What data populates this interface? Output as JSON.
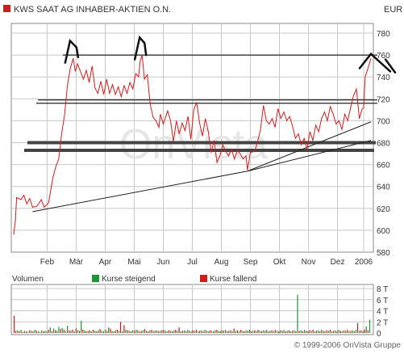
{
  "header": {
    "title": "KWS SAAT AG INHABER-AKTIEN O.N.",
    "currency": "EUR"
  },
  "watermark": "OnVista",
  "colors": {
    "price_line": "#d21c1c",
    "grid": "#c8c8c8",
    "volume_up": "#1e9632",
    "volume_down": "#d21c1c",
    "trendline": "#222222",
    "support_band": "#444444",
    "annotation": "#111111"
  },
  "price_panel": {
    "y_ticks": [
      "780",
      "760",
      "740",
      "720",
      "700",
      "680",
      "660",
      "640",
      "620",
      "600",
      "580"
    ],
    "x_ticks": [
      "Feb",
      "Mär",
      "Apr",
      "Mai",
      "Jun",
      "Jul",
      "Aug",
      "Sep",
      "Okt",
      "Nov",
      "Dez",
      "2006"
    ]
  },
  "volume_panel": {
    "title": "Volumen",
    "legend_up": "Kurse steigend",
    "legend_down": "Kurse fallend",
    "y_ticks": [
      "8 T",
      "6 T",
      "4 T",
      "2 T",
      "0"
    ]
  },
  "footer": {
    "copyright": "© 1999-2006 OnVista Gruppe"
  },
  "chart_data": {
    "type": "line",
    "title": "KWS SAAT AG INHABER-AKTIEN O.N.",
    "ylabel": "EUR",
    "ylim": [
      580,
      780
    ],
    "x_unit": "months since start of January 2005",
    "xlim": [
      0,
      12.3
    ],
    "grid": true,
    "series": [
      {
        "name": "KWS SAAT AG INHABER-AKTIEN O.N.",
        "points": [
          [
            0.0,
            596
          ],
          [
            0.06,
            610
          ],
          [
            0.1,
            630
          ],
          [
            0.25,
            628
          ],
          [
            0.35,
            632
          ],
          [
            0.45,
            624
          ],
          [
            0.55,
            629
          ],
          [
            0.65,
            621
          ],
          [
            0.8,
            622
          ],
          [
            0.95,
            628
          ],
          [
            1.05,
            621
          ],
          [
            1.2,
            625
          ],
          [
            1.35,
            648
          ],
          [
            1.45,
            658
          ],
          [
            1.55,
            665
          ],
          [
            1.65,
            688
          ],
          [
            1.75,
            705
          ],
          [
            1.85,
            732
          ],
          [
            1.95,
            748
          ],
          [
            2.05,
            757
          ],
          [
            2.12,
            745
          ],
          [
            2.2,
            752
          ],
          [
            2.3,
            745
          ],
          [
            2.4,
            738
          ],
          [
            2.5,
            746
          ],
          [
            2.6,
            735
          ],
          [
            2.7,
            750
          ],
          [
            2.8,
            730
          ],
          [
            2.9,
            725
          ],
          [
            3.0,
            736
          ],
          [
            3.1,
            724
          ],
          [
            3.2,
            738
          ],
          [
            3.3,
            725
          ],
          [
            3.4,
            733
          ],
          [
            3.5,
            724
          ],
          [
            3.6,
            731
          ],
          [
            3.7,
            722
          ],
          [
            3.8,
            732
          ],
          [
            3.9,
            725
          ],
          [
            4.0,
            735
          ],
          [
            4.1,
            729
          ],
          [
            4.2,
            743
          ],
          [
            4.3,
            740
          ],
          [
            4.35,
            754
          ],
          [
            4.42,
            760
          ],
          [
            4.5,
            738
          ],
          [
            4.6,
            742
          ],
          [
            4.7,
            715
          ],
          [
            4.8,
            703
          ],
          [
            4.9,
            700
          ],
          [
            5.0,
            694
          ],
          [
            5.05,
            706
          ],
          [
            5.15,
            697
          ],
          [
            5.3,
            709
          ],
          [
            5.4,
            700
          ],
          [
            5.5,
            681
          ],
          [
            5.6,
            700
          ],
          [
            5.7,
            688
          ],
          [
            5.8,
            698
          ],
          [
            5.9,
            691
          ],
          [
            6.0,
            704
          ],
          [
            6.1,
            683
          ],
          [
            6.2,
            710
          ],
          [
            6.3,
            717
          ],
          [
            6.4,
            698
          ],
          [
            6.5,
            686
          ],
          [
            6.6,
            702
          ],
          [
            6.7,
            690
          ],
          [
            6.8,
            671
          ],
          [
            6.9,
            682
          ],
          [
            7.0,
            662
          ],
          [
            7.1,
            668
          ],
          [
            7.2,
            678
          ],
          [
            7.3,
            672
          ],
          [
            7.4,
            668
          ],
          [
            7.5,
            674
          ],
          [
            7.6,
            665
          ],
          [
            7.7,
            673
          ],
          [
            7.8,
            670
          ],
          [
            7.9,
            665
          ],
          [
            8.0,
            668
          ],
          [
            8.05,
            655
          ],
          [
            8.15,
            671
          ],
          [
            8.3,
            672
          ],
          [
            8.4,
            681
          ],
          [
            8.5,
            692
          ],
          [
            8.6,
            714
          ],
          [
            8.7,
            700
          ],
          [
            8.8,
            697
          ],
          [
            8.9,
            702
          ],
          [
            9.0,
            694
          ],
          [
            9.1,
            711
          ],
          [
            9.2,
            702
          ],
          [
            9.3,
            708
          ],
          [
            9.4,
            700
          ],
          [
            9.5,
            704
          ],
          [
            9.6,
            695
          ],
          [
            9.7,
            684
          ],
          [
            9.8,
            688
          ],
          [
            9.9,
            678
          ],
          [
            10.0,
            684
          ],
          [
            10.1,
            674
          ],
          [
            10.2,
            690
          ],
          [
            10.3,
            682
          ],
          [
            10.4,
            696
          ],
          [
            10.5,
            690
          ],
          [
            10.6,
            702
          ],
          [
            10.7,
            708
          ],
          [
            10.8,
            700
          ],
          [
            10.9,
            713
          ],
          [
            11.0,
            706
          ],
          [
            11.1,
            697
          ],
          [
            11.2,
            700
          ],
          [
            11.3,
            692
          ],
          [
            11.4,
            706
          ],
          [
            11.5,
            700
          ],
          [
            11.6,
            712
          ],
          [
            11.7,
            723
          ],
          [
            11.8,
            729
          ],
          [
            11.9,
            702
          ],
          [
            12.0,
            711
          ],
          [
            12.05,
            712
          ],
          [
            12.1,
            740
          ],
          [
            12.2,
            748
          ],
          [
            12.3,
            757
          ]
        ]
      }
    ],
    "volume": [
      [
        "d",
        3.1
      ],
      [
        "d",
        0.4
      ],
      [
        "u",
        0.5
      ],
      [
        "d",
        0.3
      ],
      [
        "u",
        0.6
      ],
      [
        "d",
        0.2
      ],
      [
        "u",
        0.4
      ],
      [
        "d",
        0.3
      ],
      [
        "u",
        0.2
      ],
      [
        "d",
        0.5
      ],
      [
        "u",
        0.4
      ],
      [
        "d",
        0.3
      ],
      [
        "u",
        0.6
      ],
      [
        "d",
        0.4
      ],
      [
        "u",
        0.3
      ],
      [
        "d",
        0.2
      ],
      [
        "u",
        0.5
      ],
      [
        "d",
        0.3
      ],
      [
        "u",
        0.4
      ],
      [
        "u",
        0.3
      ],
      [
        "d",
        0.6
      ],
      [
        "u",
        1.0
      ],
      [
        "d",
        0.3
      ],
      [
        "u",
        0.8
      ],
      [
        "d",
        0.5
      ],
      [
        "u",
        0.4
      ],
      [
        "u",
        1.1
      ],
      [
        "d",
        0.7
      ],
      [
        "u",
        0.9
      ],
      [
        "d",
        0.6
      ],
      [
        "u",
        0.3
      ],
      [
        "u",
        1.3
      ],
      [
        "d",
        0.5
      ],
      [
        "u",
        0.4
      ],
      [
        "d",
        0.6
      ],
      [
        "u",
        0.3
      ],
      [
        "d",
        0.8
      ],
      [
        "u",
        0.5
      ],
      [
        "d",
        0.4
      ],
      [
        "u",
        2.2
      ],
      [
        "d",
        0.6
      ],
      [
        "u",
        0.5
      ],
      [
        "d",
        0.3
      ],
      [
        "u",
        0.4
      ],
      [
        "d",
        0.5
      ],
      [
        "u",
        0.3
      ],
      [
        "d",
        0.6
      ],
      [
        "u",
        0.4
      ],
      [
        "d",
        0.3
      ],
      [
        "u",
        0.5
      ],
      [
        "d",
        0.7
      ],
      [
        "u",
        0.4
      ],
      [
        "d",
        0.3
      ],
      [
        "u",
        0.6
      ],
      [
        "d",
        0.4
      ],
      [
        "u",
        1.0
      ],
      [
        "d",
        0.8
      ],
      [
        "u",
        0.4
      ],
      [
        "d",
        0.3
      ],
      [
        "u",
        0.5
      ],
      [
        "d",
        0.6
      ],
      [
        "u",
        0.4
      ],
      [
        "d",
        2.0
      ],
      [
        "u",
        0.3
      ],
      [
        "d",
        1.4
      ],
      [
        "u",
        0.6
      ],
      [
        "d",
        0.5
      ],
      [
        "u",
        0.4
      ],
      [
        "d",
        0.3
      ],
      [
        "u",
        0.5
      ],
      [
        "d",
        0.4
      ],
      [
        "u",
        0.6
      ],
      [
        "d",
        0.5
      ],
      [
        "u",
        0.3
      ],
      [
        "d",
        0.4
      ],
      [
        "u",
        0.5
      ],
      [
        "d",
        0.7
      ],
      [
        "u",
        0.4
      ],
      [
        "d",
        0.3
      ],
      [
        "u",
        0.5
      ],
      [
        "d",
        0.6
      ],
      [
        "u",
        0.3
      ],
      [
        "d",
        0.4
      ],
      [
        "u",
        0.5
      ],
      [
        "d",
        0.3
      ],
      [
        "u",
        0.4
      ],
      [
        "d",
        0.5
      ],
      [
        "u",
        0.6
      ],
      [
        "d",
        0.4
      ],
      [
        "u",
        0.3
      ],
      [
        "d",
        0.5
      ],
      [
        "u",
        0.4
      ],
      [
        "d",
        0.3
      ],
      [
        "u",
        0.5
      ],
      [
        "d",
        0.6
      ],
      [
        "u",
        0.4
      ],
      [
        "d",
        1.0
      ],
      [
        "u",
        0.3
      ],
      [
        "d",
        0.4
      ],
      [
        "u",
        0.5
      ],
      [
        "d",
        0.3
      ],
      [
        "u",
        0.6
      ],
      [
        "d",
        0.4
      ],
      [
        "u",
        0.3
      ],
      [
        "d",
        0.5
      ],
      [
        "u",
        0.4
      ],
      [
        "d",
        0.6
      ],
      [
        "u",
        0.3
      ],
      [
        "d",
        0.4
      ],
      [
        "u",
        0.5
      ],
      [
        "d",
        0.3
      ],
      [
        "u",
        0.6
      ],
      [
        "d",
        0.4
      ],
      [
        "u",
        0.3
      ],
      [
        "d",
        0.5
      ],
      [
        "u",
        0.4
      ],
      [
        "d",
        0.3
      ],
      [
        "u",
        0.5
      ],
      [
        "d",
        0.6
      ],
      [
        "u",
        0.4
      ],
      [
        "d",
        0.3
      ],
      [
        "u",
        0.5
      ],
      [
        "d",
        0.4
      ],
      [
        "u",
        0.6
      ],
      [
        "d",
        0.3
      ],
      [
        "u",
        0.4
      ],
      [
        "d",
        0.5
      ],
      [
        "u",
        0.3
      ],
      [
        "d",
        0.8
      ],
      [
        "u",
        0.4
      ],
      [
        "d",
        0.5
      ],
      [
        "u",
        0.3
      ],
      [
        "d",
        0.6
      ],
      [
        "u",
        0.4
      ],
      [
        "d",
        0.3
      ],
      [
        "u",
        0.5
      ],
      [
        "d",
        0.4
      ],
      [
        "u",
        0.6
      ],
      [
        "d",
        0.3
      ],
      [
        "u",
        0.4
      ],
      [
        "d",
        0.5
      ],
      [
        "u",
        0.3
      ],
      [
        "d",
        0.6
      ],
      [
        "u",
        0.4
      ],
      [
        "d",
        0.3
      ],
      [
        "u",
        0.5
      ],
      [
        "d",
        0.4
      ],
      [
        "u",
        0.6
      ],
      [
        "d",
        0.3
      ],
      [
        "u",
        0.4
      ],
      [
        "d",
        0.5
      ],
      [
        "u",
        0.3
      ],
      [
        "d",
        0.6
      ],
      [
        "u",
        0.4
      ],
      [
        "d",
        0.3
      ],
      [
        "u",
        0.5
      ],
      [
        "d",
        0.4
      ],
      [
        "u",
        0.6
      ],
      [
        "d",
        0.3
      ],
      [
        "u",
        0.4
      ],
      [
        "d",
        0.5
      ],
      [
        "u",
        0.3
      ],
      [
        "d",
        0.4
      ],
      [
        "u",
        0.5
      ],
      [
        "d",
        0.3
      ],
      [
        "u",
        6.9
      ],
      [
        "d",
        0.4
      ],
      [
        "u",
        0.5
      ],
      [
        "d",
        0.3
      ],
      [
        "u",
        0.6
      ],
      [
        "d",
        0.4
      ],
      [
        "u",
        0.3
      ],
      [
        "d",
        0.5
      ],
      [
        "u",
        0.4
      ],
      [
        "d",
        0.6
      ],
      [
        "u",
        0.3
      ],
      [
        "d",
        0.4
      ],
      [
        "u",
        0.5
      ],
      [
        "d",
        0.3
      ],
      [
        "u",
        0.6
      ],
      [
        "d",
        0.4
      ],
      [
        "u",
        0.3
      ],
      [
        "d",
        0.5
      ],
      [
        "u",
        0.4
      ],
      [
        "d",
        0.6
      ],
      [
        "u",
        0.3
      ],
      [
        "d",
        0.4
      ],
      [
        "u",
        0.5
      ],
      [
        "d",
        0.3
      ],
      [
        "u",
        0.6
      ],
      [
        "d",
        0.4
      ],
      [
        "u",
        0.3
      ],
      [
        "d",
        0.5
      ],
      [
        "u",
        0.4
      ],
      [
        "d",
        0.6
      ],
      [
        "u",
        0.3
      ],
      [
        "d",
        0.4
      ],
      [
        "u",
        0.5
      ],
      [
        "d",
        0.3
      ],
      [
        "u",
        0.6
      ],
      [
        "d",
        1.8
      ],
      [
        "u",
        0.4
      ],
      [
        "d",
        0.5
      ],
      [
        "u",
        0.3
      ],
      [
        "d",
        0.6
      ],
      [
        "u",
        1.2
      ],
      [
        "d",
        0.5
      ],
      [
        "u",
        2.4
      ]
    ],
    "annotations": {
      "horizontal_levels": [
        760,
        719,
        716,
        680,
        673
      ],
      "trendlines": [
        {
          "from": [
            0.65,
            617
          ],
          "to": [
            8.05,
            654
          ]
        },
        {
          "from": [
            8.05,
            654
          ],
          "to": [
            12.3,
            699
          ]
        },
        {
          "from": [
            8.05,
            654
          ],
          "to": [
            12.3,
            682
          ]
        }
      ]
    }
  }
}
